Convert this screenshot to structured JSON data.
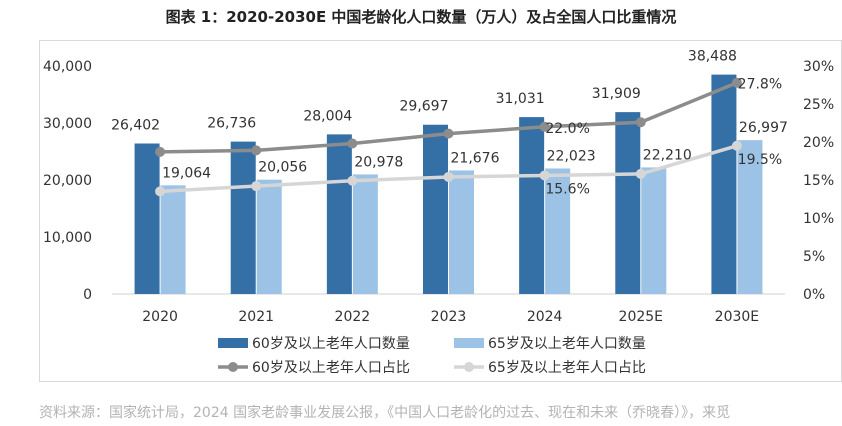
{
  "title": "图表 1：2020-2030E 中国老龄化人口数量（万人）及占全国人口比重情况",
  "footer": "资料来源：国家统计局，2024 国家老龄事业发展公报，《中国人口老龄化的过去、现在和未来（乔晓春）》，来觅",
  "colors": {
    "bar60": "#346fa6",
    "bar65": "#9cc3e6",
    "line60": "#8c8c8c",
    "line65": "#d6d6d6"
  },
  "chart_data": {
    "type": "bar",
    "categories": [
      "2020",
      "2021",
      "2022",
      "2023",
      "2024",
      "2025E",
      "2030E"
    ],
    "series": [
      {
        "name": "60岁及以上老年人口数量",
        "type": "bar",
        "axis": "left",
        "values": [
          26402,
          26736,
          28004,
          29697,
          31031,
          31909,
          38488
        ],
        "labels": [
          "26,402",
          "26,736",
          "28,004",
          "29,697",
          "31,031",
          "31,909",
          "38,488"
        ]
      },
      {
        "name": "65岁及以上老年人口数量",
        "type": "bar",
        "axis": "left",
        "values": [
          19064,
          20056,
          20978,
          21676,
          22023,
          22210,
          26997
        ],
        "labels": [
          "19,064",
          "20,056",
          "20,978",
          "21,676",
          "22,023",
          "22,210",
          "26,997"
        ]
      },
      {
        "name": "60岁及以上老年人口占比",
        "type": "line",
        "axis": "right",
        "values": [
          18.7,
          18.9,
          19.8,
          21.1,
          22.0,
          22.6,
          27.8
        ],
        "labels": [
          "",
          "",
          "",
          "",
          "22.0%",
          "",
          "27.8%"
        ]
      },
      {
        "name": "65岁及以上老年人口占比",
        "type": "line",
        "axis": "right",
        "values": [
          13.5,
          14.2,
          14.9,
          15.4,
          15.6,
          15.8,
          19.5
        ],
        "labels": [
          "",
          "",
          "",
          "",
          "15.6%",
          "",
          "19.5%"
        ]
      }
    ],
    "y_left": {
      "range": [
        0,
        40000
      ],
      "ticks": [
        "0",
        "10,000",
        "20,000",
        "30,000",
        "40,000"
      ]
    },
    "y_right": {
      "range": [
        0,
        30
      ],
      "ticks": [
        "0%",
        "5%",
        "10%",
        "15%",
        "20%",
        "25%",
        "30%"
      ]
    },
    "grid": false,
    "legend_position": "bottom"
  }
}
